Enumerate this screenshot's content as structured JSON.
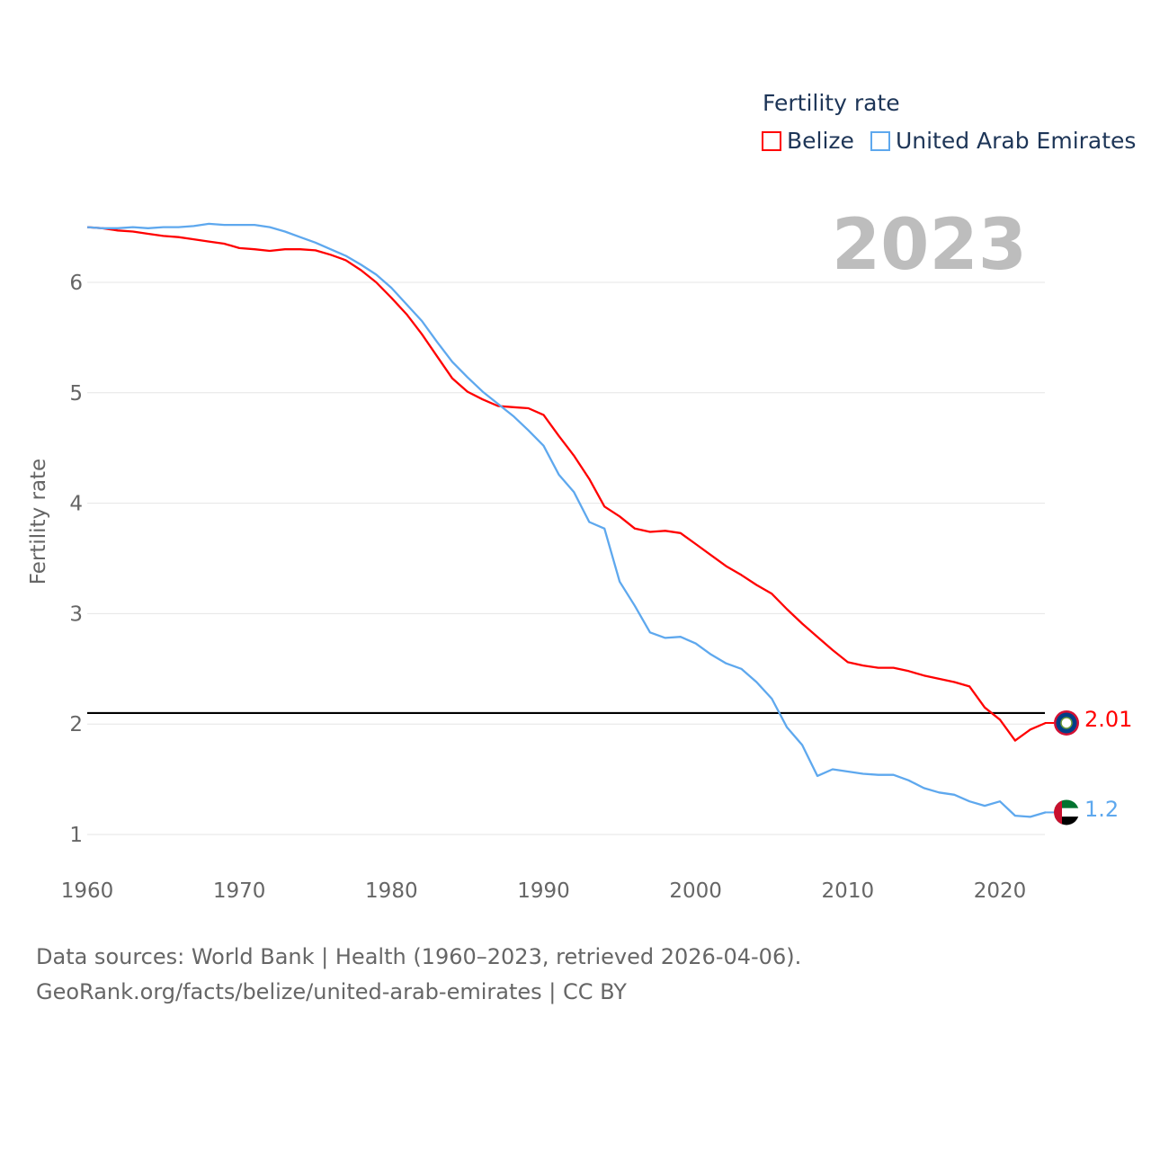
{
  "chart_data": {
    "type": "line",
    "title": "Fertility rate",
    "year_display": "2023",
    "xlabel": "",
    "ylabel": "Fertility rate",
    "xlim": [
      1960,
      2023
    ],
    "ylim": [
      0.8,
      6.6
    ],
    "x_ticks": [
      "1960",
      "1970",
      "1980",
      "1990",
      "2000",
      "2010",
      "2020"
    ],
    "y_ticks": [
      "1",
      "2",
      "3",
      "4",
      "5",
      "6"
    ],
    "reference_line": 2.1,
    "x_start": 1960,
    "series": [
      {
        "name": "Belize",
        "color": "#ff0000",
        "end_label": "2.01",
        "values": [
          6.5,
          6.49,
          6.47,
          6.46,
          6.44,
          6.42,
          6.41,
          6.39,
          6.37,
          6.35,
          6.31,
          6.3,
          6.285,
          6.3,
          6.3,
          6.29,
          6.25,
          6.2,
          6.11,
          6.0,
          5.86,
          5.71,
          5.53,
          5.33,
          5.13,
          5.01,
          4.94,
          4.88,
          4.87,
          4.86,
          4.8,
          4.61,
          4.43,
          4.22,
          3.97,
          3.88,
          3.77,
          3.74,
          3.75,
          3.73,
          3.63,
          3.53,
          3.43,
          3.35,
          3.26,
          3.18,
          3.04,
          2.91,
          2.79,
          2.67,
          2.56,
          2.53,
          2.51,
          2.51,
          2.48,
          2.44,
          2.41,
          2.38,
          2.34,
          2.15,
          2.04,
          1.85,
          1.95,
          2.01
        ]
      },
      {
        "name": "United Arab Emirates",
        "color": "#5ea8ee",
        "end_label": "1.2",
        "values": [
          6.5,
          6.49,
          6.49,
          6.5,
          6.49,
          6.5,
          6.5,
          6.51,
          6.53,
          6.52,
          6.52,
          6.52,
          6.5,
          6.46,
          6.41,
          6.36,
          6.3,
          6.24,
          6.16,
          6.07,
          5.95,
          5.8,
          5.65,
          5.46,
          5.28,
          5.14,
          5.01,
          4.9,
          4.79,
          4.66,
          4.52,
          4.26,
          4.1,
          3.83,
          3.77,
          3.29,
          3.07,
          2.83,
          2.78,
          2.79,
          2.73,
          2.63,
          2.55,
          2.5,
          2.38,
          2.23,
          1.97,
          1.81,
          1.53,
          1.59,
          1.57,
          1.55,
          1.54,
          1.54,
          1.49,
          1.42,
          1.38,
          1.36,
          1.3,
          1.26,
          1.3,
          1.17,
          1.16,
          1.2
        ]
      }
    ]
  },
  "source_line1": "Data sources: World Bank | Health (1960–2023, retrieved 2026-04-06).",
  "source_line2": "GeoRank.org/facts/belize/united-arab-emirates | CC BY"
}
